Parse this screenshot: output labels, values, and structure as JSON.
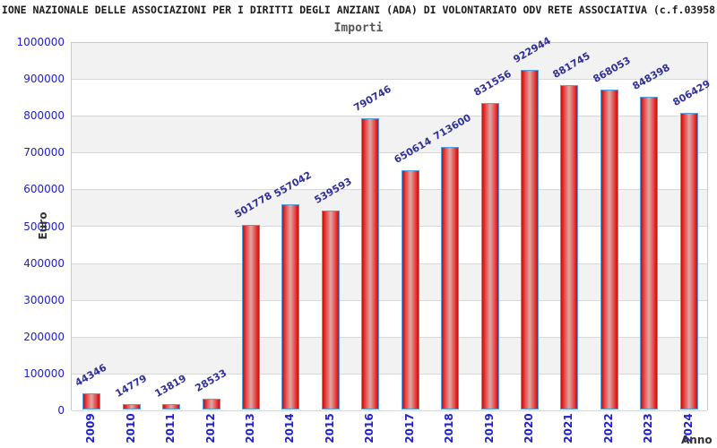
{
  "header": {
    "title": "IONE NAZIONALE DELLE ASSOCIAZIONI PER I DIRITTI DEGLI ANZIANI (ADA) DI VOLONTARIATO ODV RETE ASSOCIATIVA (c.f.03958",
    "subtitle": "Importi"
  },
  "chart_data": {
    "type": "bar",
    "title": "Importi",
    "xlabel": "Anno",
    "ylabel": "Euro",
    "categories": [
      "2009",
      "2010",
      "2011",
      "2012",
      "2013",
      "2014",
      "2015",
      "2016",
      "2017",
      "2018",
      "2019",
      "2020",
      "2021",
      "2022",
      "2023",
      "2024"
    ],
    "values": [
      44346,
      14779,
      13819,
      28533,
      501778,
      557042,
      539593,
      790746,
      650614,
      713600,
      831556,
      922944,
      881745,
      868053,
      848398,
      806429
    ],
    "ylim": [
      0,
      1000000
    ],
    "ytick_step": 100000,
    "ytick_labels": [
      "1000000",
      "900000",
      "800000",
      "700000",
      "600000",
      "500000",
      "400000",
      "300000",
      "200000",
      "100000",
      "0"
    ],
    "grid": "horizontal alternating bands",
    "legend": "none"
  },
  "colors": {
    "bar_border": "#58a0dd",
    "bar_fill_edge": "#c40d0d",
    "bar_fill_mid": "#dca8a4",
    "tick_label_blue": "#2020cc",
    "value_label_navy": "#303099",
    "axis_title_gray": "#333333",
    "band_gray": "#f2f2f2",
    "band_white": "#ffffff",
    "grid_line": "#d8d8d8",
    "plot_border": "#c9c9c9"
  }
}
